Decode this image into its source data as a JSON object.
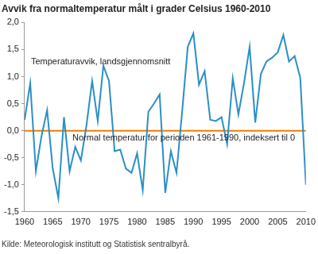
{
  "chart_data": {
    "type": "line",
    "title": "Avvik fra normaltemperatur målt i grader Celsius 1960-2010",
    "source": "Kilde: Meteorologisk institutt og Statistisk sentralbyrå.",
    "x": [
      1960,
      1961,
      1962,
      1963,
      1964,
      1965,
      1966,
      1967,
      1968,
      1969,
      1970,
      1971,
      1972,
      1973,
      1974,
      1975,
      1976,
      1977,
      1978,
      1979,
      1980,
      1981,
      1982,
      1983,
      1984,
      1985,
      1986,
      1987,
      1988,
      1989,
      1990,
      1991,
      1992,
      1993,
      1994,
      1995,
      1996,
      1997,
      1998,
      1999,
      2000,
      2001,
      2002,
      2003,
      2004,
      2005,
      2006,
      2007,
      2008,
      2009,
      2010
    ],
    "series": [
      {
        "name": "Temperaturavvik, landsgjennomsnitt",
        "color": "#2a8fc7",
        "values": [
          0.2,
          0.88,
          -0.75,
          -0.1,
          0.38,
          -0.7,
          -1.25,
          0.25,
          -0.75,
          -0.3,
          -0.55,
          0.1,
          0.92,
          0.18,
          1.2,
          0.92,
          -0.38,
          -0.35,
          -0.7,
          -0.78,
          -0.42,
          -1.1,
          0.35,
          0.5,
          0.67,
          -1.15,
          -0.38,
          -0.78,
          0.35,
          1.55,
          1.8,
          0.85,
          1.1,
          0.2,
          0.18,
          0.25,
          -0.25,
          0.97,
          0.3,
          0.88,
          1.55,
          0.15,
          1.05,
          1.28,
          1.35,
          1.45,
          1.77,
          1.28,
          1.38,
          0.98,
          -1.0
        ]
      },
      {
        "name": "Normal temperatur for perioden 1961-1990, indeksert til 0",
        "color": "#f07d00",
        "values": [
          0,
          0,
          0,
          0,
          0,
          0,
          0,
          0,
          0,
          0,
          0,
          0,
          0,
          0,
          0,
          0,
          0,
          0,
          0,
          0,
          0,
          0,
          0,
          0,
          0,
          0,
          0,
          0,
          0,
          0,
          0,
          0,
          0,
          0,
          0,
          0,
          0,
          0,
          0,
          0,
          0,
          0,
          0,
          0,
          0,
          0,
          0,
          0,
          0,
          0,
          0
        ]
      }
    ],
    "xlim": [
      1960,
      2010
    ],
    "xticks": [
      1960,
      1965,
      1970,
      1975,
      1980,
      1985,
      1990,
      1995,
      2000,
      2005,
      2010
    ],
    "ylim": [
      -1.5,
      2.0
    ],
    "yticks": [
      {
        "value": -1.5,
        "label": "-1,5"
      },
      {
        "value": -1.0,
        "label": "-1,0"
      },
      {
        "value": -0.5,
        "label": "-0,5"
      },
      {
        "value": 0.0,
        "label": "0,0"
      },
      {
        "value": 0.5,
        "label": "0,5"
      },
      {
        "value": 1.0,
        "label": "1,0"
      },
      {
        "value": 1.5,
        "label": "1,5"
      },
      {
        "value": 2.0,
        "label": "2,0"
      }
    ],
    "grid": false
  }
}
